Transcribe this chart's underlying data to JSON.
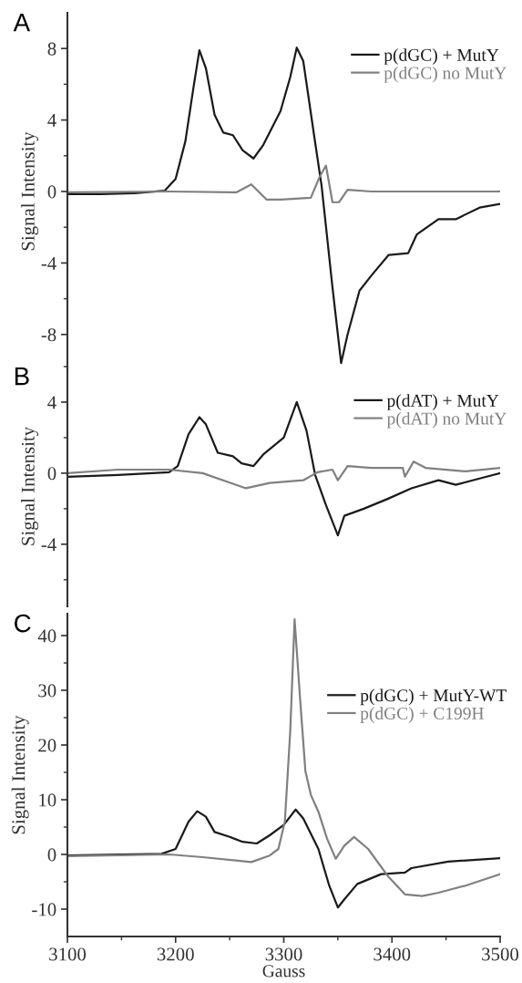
{
  "chart_data": [
    {
      "type": "line",
      "title": "A",
      "ylabel": "Signal Intensity",
      "xlim": [
        3100,
        3500
      ],
      "ylim": [
        -10,
        10
      ],
      "tick_labels": "y",
      "legend": "top right",
      "yticks": [
        -8,
        -4,
        0,
        4,
        8,
        {
          "value": -6,
          "label": null
        },
        {
          "value": -2,
          "label": null
        },
        {
          "value": 2,
          "label": null
        },
        {
          "value": 6,
          "label": null
        }
      ],
      "series": [
        {
          "name": "p(dGC) + MutY",
          "color": "#1a1a1a",
          "x": [
            3100,
            3131,
            3162,
            3190,
            3200,
            3209,
            3217,
            3222,
            3228,
            3236,
            3244,
            3253,
            3262,
            3272,
            3281,
            3297,
            3306,
            3312,
            3318,
            3328,
            3335,
            3345,
            3353,
            3359,
            3370,
            3381,
            3397,
            3415,
            3423,
            3443,
            3459,
            3481,
            3500
          ],
          "values": [
            -0.15,
            -0.15,
            -0.1,
            0.05,
            0.7,
            2.8,
            6.0,
            7.9,
            6.9,
            4.3,
            3.3,
            3.15,
            2.3,
            1.85,
            2.6,
            4.5,
            6.4,
            8.05,
            7.3,
            3.15,
            0.3,
            -5.35,
            -9.6,
            -8.0,
            -5.55,
            -4.7,
            -3.55,
            -3.45,
            -2.4,
            -1.55,
            -1.55,
            -0.9,
            -0.7
          ]
        },
        {
          "name": "p(dGC) no MutY",
          "color": "#808080",
          "x": [
            3100,
            3194,
            3256,
            3270,
            3284,
            3297,
            3325,
            3333,
            3339,
            3345,
            3351,
            3359,
            3381,
            3443,
            3500
          ],
          "values": [
            -0.05,
            0,
            -0.05,
            0.4,
            -0.45,
            -0.45,
            -0.35,
            0.8,
            1.45,
            -0.6,
            -0.6,
            0.1,
            0,
            0,
            0
          ]
        }
      ]
    },
    {
      "type": "line",
      "title": "B",
      "ylabel": "Signal Intensity",
      "xlim": [
        3100,
        3500
      ],
      "ylim": [
        -7.5,
        6
      ],
      "tick_labels": "y",
      "legend": "top right",
      "yticks": [
        -4,
        0,
        4,
        {
          "value": -6,
          "label": null
        },
        {
          "value": -2,
          "label": null
        },
        {
          "value": 2,
          "label": null
        },
        {
          "value": 6,
          "label": null
        }
      ],
      "series": [
        {
          "name": "p(dAT) + MutY",
          "color": "#1a1a1a",
          "x": [
            3100,
            3147,
            3194,
            3202,
            3212,
            3222,
            3228,
            3239,
            3253,
            3261,
            3272,
            3281,
            3300,
            3312,
            3321,
            3329,
            3339,
            3350,
            3356,
            3374,
            3396,
            3418,
            3443,
            3459,
            3481,
            3500
          ],
          "values": [
            -0.2,
            -0.1,
            0.05,
            0.4,
            2.2,
            3.15,
            2.75,
            1.15,
            0.95,
            0.55,
            0.4,
            1.05,
            2.0,
            4.0,
            2.4,
            -0.1,
            -1.8,
            -3.5,
            -2.4,
            -2.0,
            -1.45,
            -0.85,
            -0.4,
            -0.65,
            -0.3,
            0
          ]
        },
        {
          "name": "p(dAT) no MutY",
          "color": "#808080",
          "x": [
            3100,
            3147,
            3194,
            3225,
            3265,
            3287,
            3318,
            3331,
            3345,
            3350,
            3359,
            3381,
            3410,
            3412,
            3420,
            3431,
            3468,
            3500
          ],
          "values": [
            0,
            0.2,
            0.2,
            0,
            -0.85,
            -0.55,
            -0.4,
            0.05,
            0.2,
            -0.4,
            0.4,
            0.3,
            0.3,
            -0.2,
            0.65,
            0.3,
            0.1,
            0.3
          ]
        }
      ]
    },
    {
      "type": "line",
      "title": "C",
      "ylabel": "Signal Intensity",
      "xlabel": "Gauss",
      "xlim": [
        3100,
        3500
      ],
      "ylim": [
        -15,
        44
      ],
      "legend": "top right",
      "xticks": [
        3100,
        3200,
        3300,
        3400,
        3500,
        {
          "value": 3150,
          "label": null
        },
        {
          "value": 3250,
          "label": null
        },
        {
          "value": 3350,
          "label": null
        },
        {
          "value": 3450,
          "label": null
        }
      ],
      "yticks": [
        -10,
        0,
        10,
        20,
        30,
        40,
        {
          "value": -5,
          "label": null
        },
        {
          "value": 5,
          "label": null
        },
        {
          "value": 15,
          "label": null
        },
        {
          "value": 25,
          "label": null
        },
        {
          "value": 35,
          "label": null
        }
      ],
      "series": [
        {
          "name": "p(dGC) + MutY-WT",
          "color": "#1a1a1a",
          "x": [
            3100,
            3187,
            3200,
            3212,
            3220,
            3228,
            3236,
            3250,
            3262,
            3275,
            3287,
            3300,
            3311,
            3318,
            3332,
            3342,
            3350,
            3356,
            3368,
            3390,
            3412,
            3418,
            3452,
            3500
          ],
          "values": [
            -0.2,
            0.1,
            1.0,
            6.0,
            7.9,
            6.9,
            4.1,
            3.2,
            2.3,
            2.0,
            3.5,
            5.4,
            8.2,
            6.6,
            1.0,
            -5.7,
            -9.7,
            -8.2,
            -5.4,
            -3.6,
            -3.3,
            -2.5,
            -1.3,
            -0.7
          ]
        },
        {
          "name": "p(dGC) + C199H",
          "color": "#808080",
          "x": [
            3100,
            3194,
            3225,
            3270,
            3287,
            3295,
            3301,
            3306,
            3310,
            3315,
            3320,
            3325,
            3332,
            3340,
            3348,
            3356,
            3365,
            3378,
            3396,
            3412,
            3428,
            3443,
            3468,
            3500
          ],
          "values": [
            -0.3,
            0,
            -0.5,
            -1.4,
            -0.2,
            1.0,
            6.0,
            22.6,
            43,
            28.7,
            15.2,
            10.9,
            7.8,
            2.9,
            -0.8,
            1.6,
            3.2,
            1.0,
            -3.9,
            -7.3,
            -7.6,
            -7.0,
            -5.7,
            -3.6
          ]
        }
      ]
    }
  ]
}
